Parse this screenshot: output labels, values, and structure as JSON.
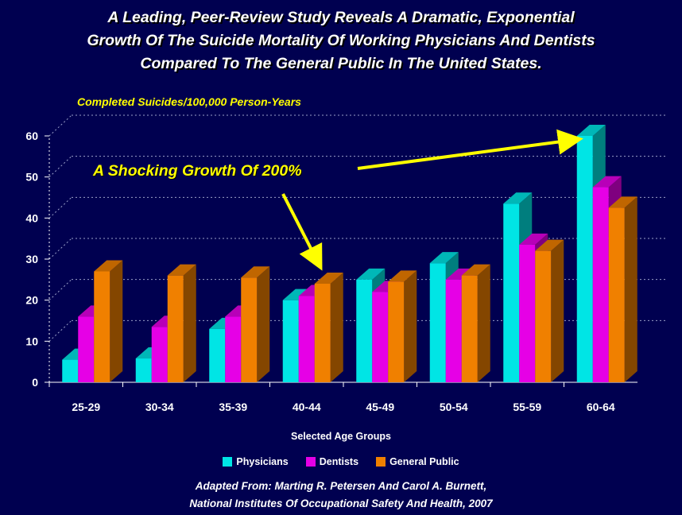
{
  "title": "A Leading, Peer-Review Study Reveals A Dramatic, Exponential\nGrowth Of The Suicide Mortality Of Working Physicians And Dentists\nCompared To The General Public In The United States.",
  "annotation": "A Shocking Growth Of 200%",
  "source": "Adapted From: Marting R. Petersen And Carol A. Burnett,\nNational Institutes Of Occupational Safety And Health, 2007",
  "colors": {
    "background": "#000050",
    "axis_text": "#ffffff",
    "ylabel_text": "#ffff00",
    "gridline": "#9aa0c8",
    "arrow": "#ffff00"
  },
  "chart_data": {
    "type": "bar",
    "title": "",
    "xlabel": "Selected Age Groups",
    "ylabel": "Completed Suicides/100,000 Person-Years",
    "ylim": [
      0,
      60
    ],
    "yticks": [
      0,
      10,
      20,
      30,
      40,
      50,
      60
    ],
    "grid": true,
    "legend_position": "bottom",
    "categories": [
      "25-29",
      "30-34",
      "35-39",
      "40-44",
      "45-49",
      "50-54",
      "55-59",
      "60-64"
    ],
    "series": [
      {
        "name": "Physicians",
        "color": "#00e5e5",
        "values": [
          5.5,
          5.8,
          13,
          20,
          25,
          29,
          43.5,
          60
        ]
      },
      {
        "name": "Dentists",
        "color": "#e600e6",
        "values": [
          16,
          13.5,
          16,
          21,
          22,
          25,
          33.5,
          47.5
        ]
      },
      {
        "name": "General Public",
        "color": "#f08000",
        "values": [
          27,
          26,
          25.5,
          24,
          24.5,
          26,
          32,
          42.5
        ]
      }
    ]
  }
}
